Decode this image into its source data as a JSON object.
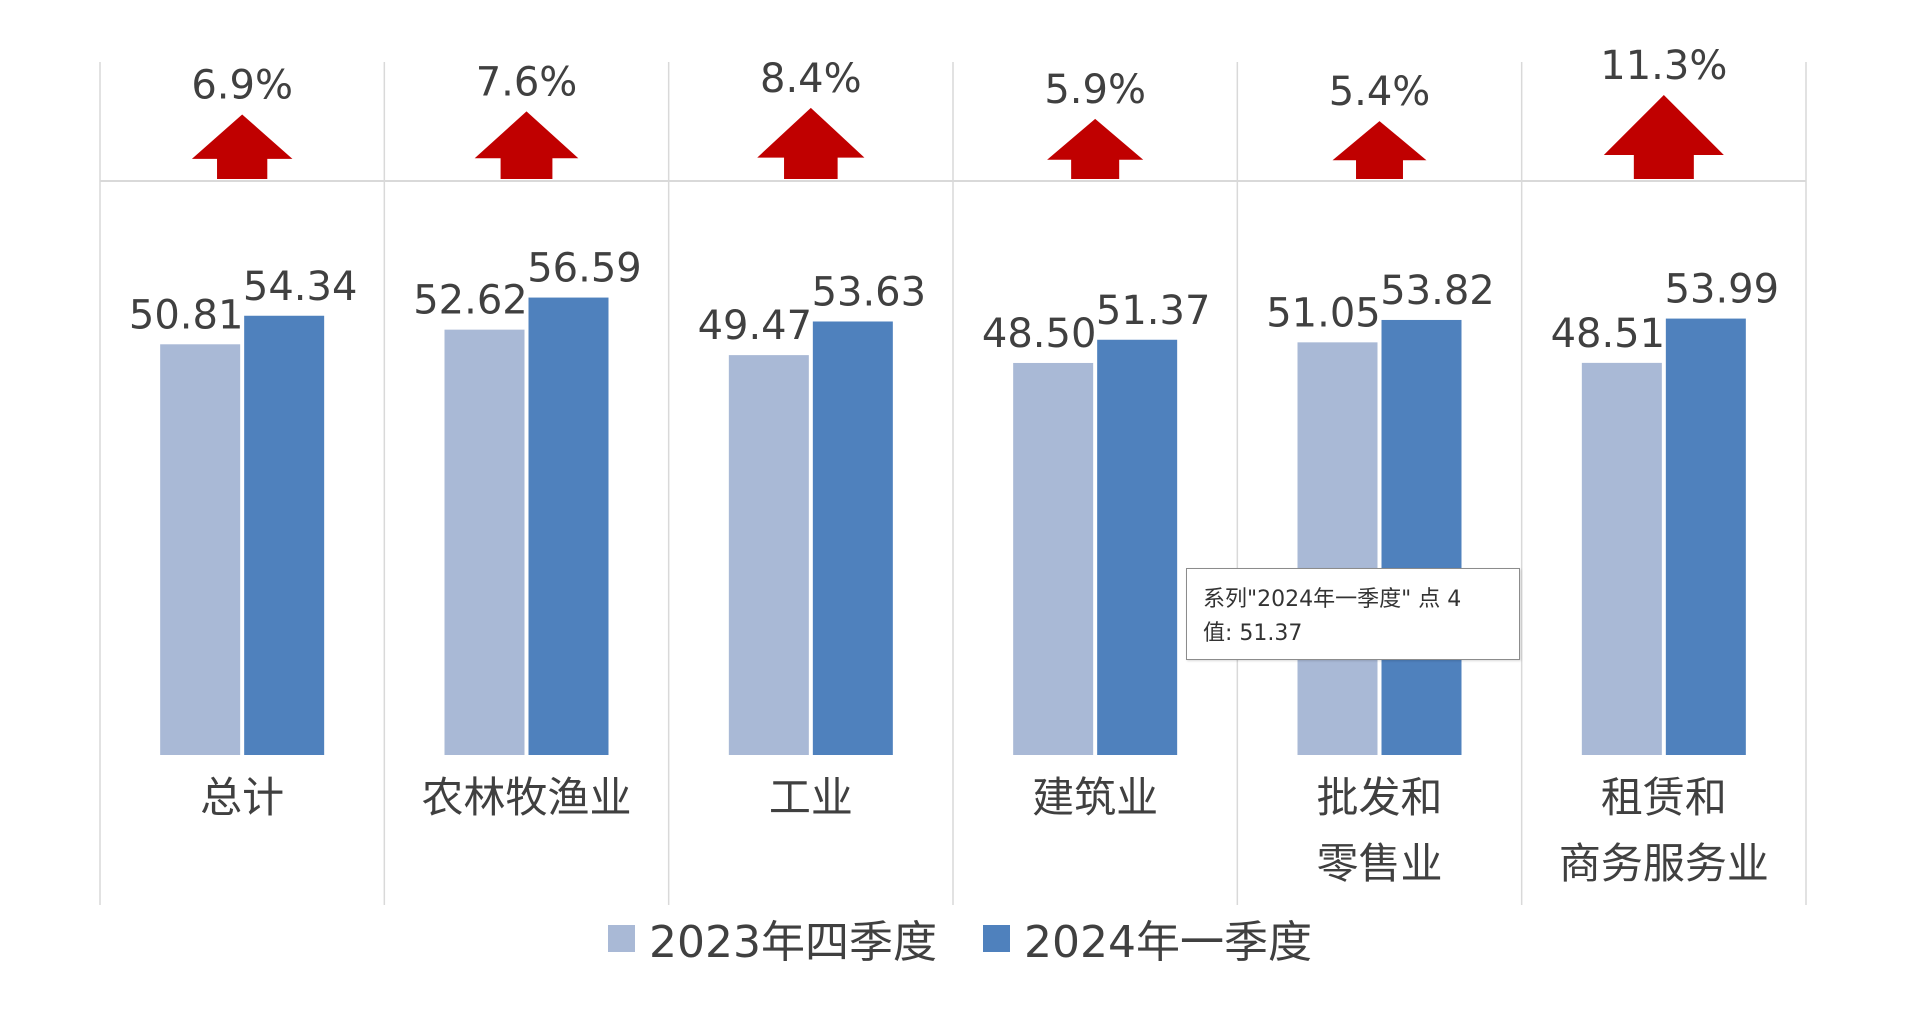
{
  "chart_data": {
    "type": "bar",
    "categories": [
      "总计",
      "农林牧渔业",
      "工业",
      "建筑业",
      "批发和\n零售业",
      "租赁和\n商务服务业"
    ],
    "series": [
      {
        "name": "2023年四季度",
        "values": [
          50.81,
          52.62,
          49.47,
          48.5,
          51.05,
          48.51
        ],
        "labels": [
          "50.81",
          "52.62",
          "49.47",
          "48.50",
          "51.05",
          "48.51"
        ],
        "color": "#a9b9d6"
      },
      {
        "name": "2024年一季度",
        "values": [
          54.34,
          56.59,
          53.63,
          51.37,
          53.82,
          53.99
        ],
        "labels": [
          "54.34",
          "56.59",
          "53.63",
          "51.37",
          "53.82",
          "53.99"
        ],
        "color": "#4f81bd"
      }
    ],
    "growth": {
      "labels": [
        "6.9%",
        "7.6%",
        "8.4%",
        "5.9%",
        "5.4%",
        "11.3%"
      ],
      "values": [
        6.9,
        7.6,
        8.4,
        5.9,
        5.4,
        11.3
      ],
      "arrow_color": "#c00000"
    },
    "ylim": [
      0,
      60
    ],
    "grid": false,
    "legend_position": "bottom"
  },
  "tooltip": {
    "line1": "系列\"2024年一季度\" 点 4",
    "line2": "值: 51.37"
  }
}
